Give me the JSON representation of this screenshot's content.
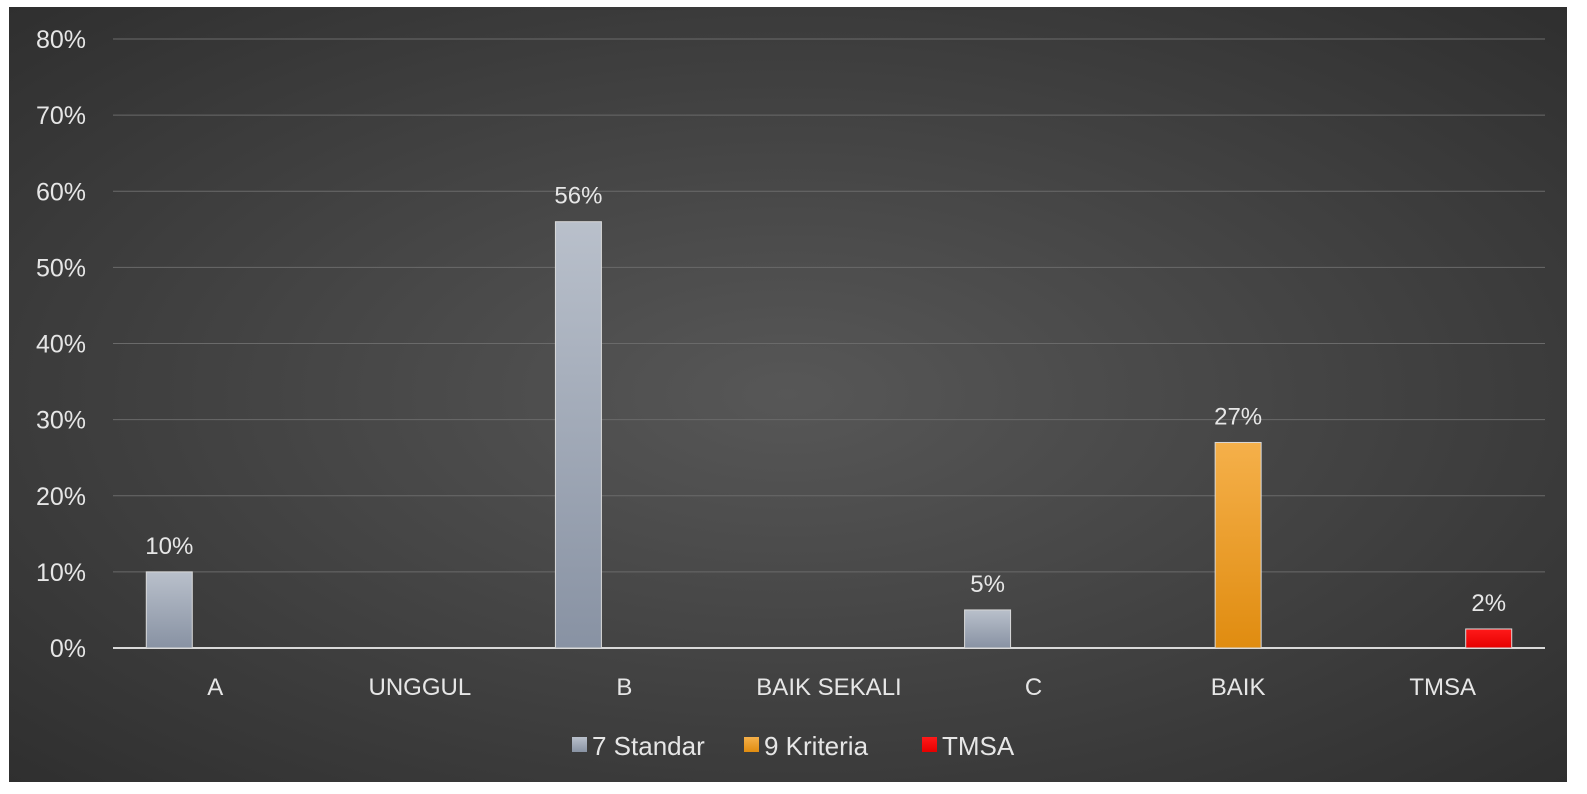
{
  "chart_data": {
    "type": "bar",
    "categories": [
      "A",
      "UNGGUL",
      "B",
      "BAIK SEKALI",
      "C",
      "BAIK",
      "TMSA"
    ],
    "series": [
      {
        "name": "7 Standar",
        "color": "#a4adbb",
        "values": [
          10,
          null,
          56,
          null,
          5,
          null,
          null
        ],
        "labels": [
          "10%",
          null,
          "56%",
          null,
          "5%",
          null,
          null
        ]
      },
      {
        "name": "9 Kriteria",
        "color": "#f2a024",
        "values": [
          null,
          null,
          null,
          null,
          null,
          27,
          null
        ],
        "labels": [
          null,
          null,
          null,
          null,
          null,
          "27%",
          null
        ]
      },
      {
        "name": "TMSA",
        "color": "#ff0000",
        "values": [
          null,
          null,
          null,
          null,
          null,
          null,
          2.5
        ],
        "labels": [
          null,
          null,
          null,
          null,
          null,
          null,
          "2%"
        ]
      }
    ],
    "yticks": [
      "0%",
      "10%",
      "20%",
      "30%",
      "40%",
      "50%",
      "60%",
      "70%",
      "80%"
    ],
    "ylim": [
      0,
      80
    ],
    "grid": true,
    "legend_position": "bottom",
    "title": "",
    "xlabel": "",
    "ylabel": ""
  }
}
